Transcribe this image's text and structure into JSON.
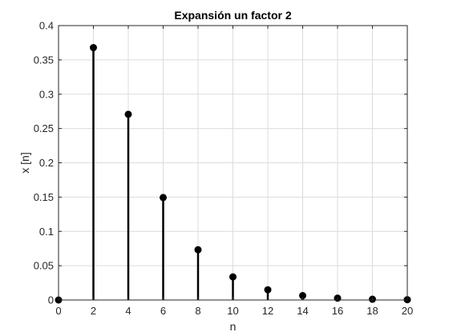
{
  "chart_data": {
    "type": "stem",
    "title": "Expansión un factor 2",
    "xlabel": "n",
    "ylabel": "x [n]",
    "xlim": [
      0,
      20
    ],
    "ylim": [
      0,
      0.4
    ],
    "grid": true,
    "x": [
      0,
      2,
      4,
      6,
      8,
      10,
      12,
      14,
      16,
      18,
      20
    ],
    "values": [
      0,
      0.3679,
      0.2707,
      0.1494,
      0.0733,
      0.0337,
      0.0149,
      0.0064,
      0.0027,
      0.0011,
      0.0005
    ],
    "xticks": [
      0,
      2,
      4,
      6,
      8,
      10,
      12,
      14,
      16,
      18,
      20
    ],
    "xtick_labels": [
      "0",
      "2",
      "4",
      "6",
      "8",
      "10",
      "12",
      "14",
      "16",
      "18",
      "20"
    ],
    "yticks": [
      0,
      0.05,
      0.1,
      0.15,
      0.2,
      0.25,
      0.3,
      0.35,
      0.4
    ],
    "ytick_labels": [
      "0",
      "0.05",
      "0.1",
      "0.15",
      "0.2",
      "0.25",
      "0.3",
      "0.35",
      "0.4"
    ],
    "colors": {
      "stem": "#000000",
      "grid": "#dcdcdc",
      "axes": "#262626"
    }
  }
}
